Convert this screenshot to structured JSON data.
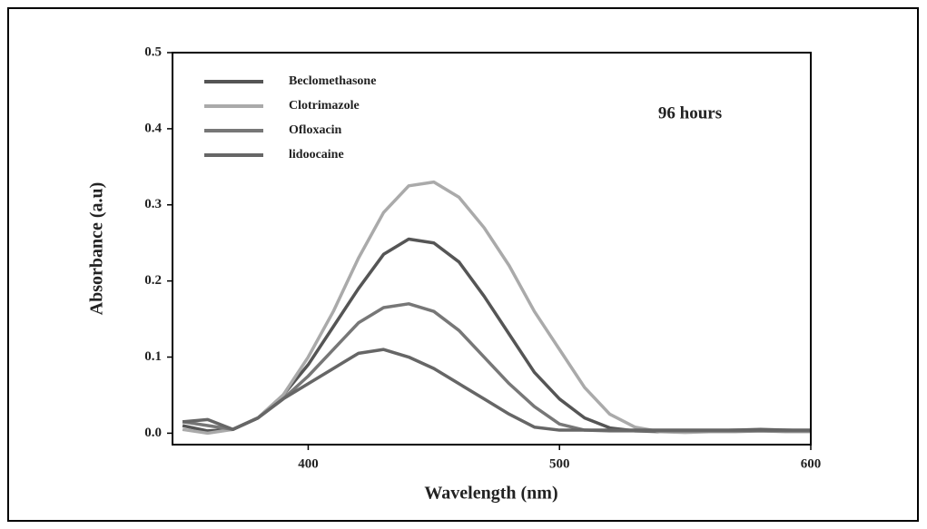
{
  "chart_data": {
    "type": "line",
    "xlabel": "Wavelength (nm)",
    "ylabel": "Absorbance (a.u)",
    "annotation": "96 hours",
    "x": [
      350,
      360,
      370,
      380,
      390,
      400,
      410,
      420,
      430,
      440,
      450,
      460,
      470,
      480,
      490,
      500,
      510,
      520,
      530,
      540,
      550,
      560,
      570,
      580,
      590,
      600
    ],
    "series": [
      {
        "name": "Beclomethasone",
        "color": "#555555",
        "values": [
          0.01,
          0.003,
          0.005,
          0.02,
          0.05,
          0.09,
          0.14,
          0.19,
          0.235,
          0.255,
          0.25,
          0.225,
          0.18,
          0.13,
          0.08,
          0.045,
          0.02,
          0.007,
          0.003,
          0.002,
          0.003,
          0.003,
          0.004,
          0.005,
          0.004,
          0.003
        ]
      },
      {
        "name": "Clotrimazole",
        "color": "#aaaaaa",
        "values": [
          0.005,
          0.0,
          0.005,
          0.02,
          0.05,
          0.1,
          0.16,
          0.23,
          0.29,
          0.325,
          0.33,
          0.31,
          0.27,
          0.22,
          0.16,
          0.11,
          0.06,
          0.025,
          0.008,
          0.002,
          0.001,
          0.002,
          0.002,
          0.003,
          0.002,
          0.002
        ]
      },
      {
        "name": "Ofloxacin",
        "color": "#777777",
        "values": [
          0.015,
          0.01,
          0.005,
          0.02,
          0.045,
          0.075,
          0.11,
          0.145,
          0.165,
          0.17,
          0.16,
          0.135,
          0.1,
          0.065,
          0.035,
          0.012,
          0.004,
          0.003,
          0.003,
          0.003,
          0.003,
          0.003,
          0.003,
          0.003,
          0.003,
          0.003
        ]
      },
      {
        "name": "lidoocaine",
        "color": "#666666",
        "values": [
          0.015,
          0.018,
          0.005,
          0.02,
          0.045,
          0.065,
          0.085,
          0.105,
          0.11,
          0.1,
          0.085,
          0.065,
          0.045,
          0.025,
          0.008,
          0.004,
          0.004,
          0.004,
          0.004,
          0.004,
          0.004,
          0.004,
          0.004,
          0.004,
          0.004,
          0.004
        ]
      }
    ],
    "xlim": [
      346,
      600
    ],
    "xticks": [
      400,
      500,
      600
    ],
    "ylim": [
      -0.015,
      0.5
    ],
    "yticks": [
      {
        "value": 0,
        "label": "0.0"
      },
      0.1,
      0.2,
      0.3,
      0.4,
      0.5
    ]
  }
}
